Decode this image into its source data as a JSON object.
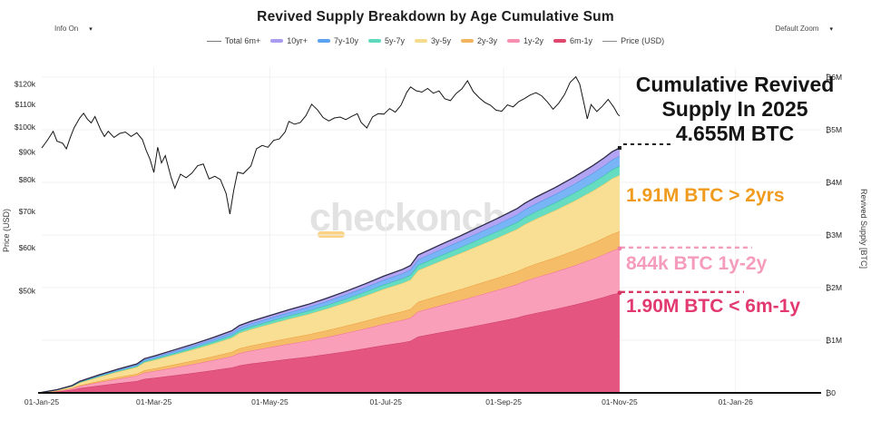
{
  "header": {
    "title": "Revived Supply Breakdown by Age Cumulative Sum",
    "info_dropdown": "Info On",
    "zoom_dropdown": "Default Zoom",
    "arrow": "▾"
  },
  "watermark": "checkonchain",
  "legend": [
    {
      "label": "Total 6m+",
      "kind": "line",
      "color": "#7a7a7a"
    },
    {
      "label": "10yr+",
      "kind": "swatch",
      "color": "#a99bef"
    },
    {
      "label": "7y-10y",
      "kind": "swatch",
      "color": "#5ba3f0"
    },
    {
      "label": "5y-7y",
      "kind": "swatch",
      "color": "#5fd9bb"
    },
    {
      "label": "3y-5y",
      "kind": "swatch",
      "color": "#f6dc8e"
    },
    {
      "label": "2y-3y",
      "kind": "swatch",
      "color": "#f2b45f"
    },
    {
      "label": "1y-2y",
      "kind": "swatch",
      "color": "#f78fb0"
    },
    {
      "label": "6m-1y",
      "kind": "swatch",
      "color": "#e0476f"
    },
    {
      "label": "Price (USD)",
      "kind": "line",
      "color": "#8a8a8a"
    }
  ],
  "annotations": {
    "headline": {
      "line1": "Cumulative Revived",
      "line2": "Supply In 2025",
      "line3": "4.655M BTC"
    },
    "over2y": "1.91M BTC > 2yrs",
    "y1to2": "844k BTC 1y-2y",
    "under1y": "1.90M BTC < 6m-1y"
  },
  "chart_data": {
    "type": "area",
    "title": "Revived Supply Breakdown by Age Cumulative Sum",
    "xlabel": "",
    "left_axis": {
      "label": "Price (USD)",
      "scale": "log",
      "ticks": [
        {
          "label": "$120k",
          "k": 120
        },
        {
          "label": "$110k",
          "k": 110
        },
        {
          "label": "$100k",
          "k": 100
        },
        {
          "label": "$90k",
          "k": 90
        },
        {
          "label": "$80k",
          "k": 80
        },
        {
          "label": "$70k",
          "k": 70
        },
        {
          "label": "$60k",
          "k": 60
        },
        {
          "label": "$50k",
          "k": 50
        }
      ]
    },
    "right_axis": {
      "label": "Revived Supply [BTC]",
      "scale": "linear",
      "max_m": 6,
      "ticks": [
        {
          "label": "₿6M",
          "m": 6
        },
        {
          "label": "₿5M",
          "m": 5
        },
        {
          "label": "₿4M",
          "m": 4
        },
        {
          "label": "₿3M",
          "m": 3
        },
        {
          "label": "₿2M",
          "m": 2
        },
        {
          "label": "₿1M",
          "m": 1
        },
        {
          "label": "₿0",
          "m": 0
        }
      ]
    },
    "x_domain_days": 410,
    "x_ticks": [
      {
        "label": "01-Jan-25",
        "day": 0
      },
      {
        "label": "01-Mar-25",
        "day": 59
      },
      {
        "label": "01-May-25",
        "day": 120
      },
      {
        "label": "01-Jul-25",
        "day": 181
      },
      {
        "label": "01-Sep-25",
        "day": 243
      },
      {
        "label": "01-Nov-25",
        "day": 304
      },
      {
        "label": "01-Jan-26",
        "day": 365
      }
    ],
    "supply": {
      "days": [
        0,
        8,
        16,
        20,
        30,
        40,
        50,
        54,
        60,
        70,
        80,
        90,
        100,
        104,
        110,
        120,
        130,
        140,
        150,
        160,
        170,
        180,
        190,
        194,
        198,
        210,
        220,
        230,
        240,
        250,
        254,
        260,
        270,
        280,
        290,
        296,
        300,
        304
      ],
      "total_m": [
        0.01,
        0.06,
        0.14,
        0.22,
        0.34,
        0.45,
        0.55,
        0.65,
        0.71,
        0.82,
        0.93,
        1.05,
        1.18,
        1.28,
        1.36,
        1.47,
        1.58,
        1.68,
        1.8,
        1.93,
        2.07,
        2.22,
        2.35,
        2.42,
        2.62,
        2.82,
        2.98,
        3.15,
        3.32,
        3.5,
        3.6,
        3.72,
        3.9,
        4.1,
        4.32,
        4.47,
        4.58,
        4.655
      ],
      "series": [
        {
          "name": "6m-1y",
          "share": 0.4081,
          "final_btc_m": 1.9,
          "fill": "#e4557f",
          "stroke": "#c93a66"
        },
        {
          "name": "1y-2y",
          "share": 0.1813,
          "final_btc_m": 0.844,
          "fill": "#f99fba",
          "stroke": "#ef6f9b"
        },
        {
          "name": "2y-3y",
          "share": 0.07,
          "final_btc_m": 0.326,
          "fill": "#f6bd69",
          "stroke": "#eb9e3e"
        },
        {
          "name": "3y-5y",
          "share": 0.2296,
          "final_btc_m": 1.071,
          "fill": "#f9df94",
          "stroke": "#ecc45f"
        },
        {
          "name": "5y-7y",
          "share": 0.0369,
          "final_btc_m": 0.172,
          "fill": "#66dcc0",
          "stroke": "#35bf9d"
        },
        {
          "name": "7y-10y",
          "share": 0.041,
          "final_btc_m": 0.191,
          "fill": "#77b5f6",
          "stroke": "#4b8fe2"
        },
        {
          "name": "10yr+",
          "share": 0.0331,
          "final_btc_m": 0.154,
          "fill": "#b2a4f2",
          "stroke": "#8d7ce3"
        }
      ],
      "total_line_color": "#2e2e48",
      "markers": {
        "total_top_m": 4.655,
        "boundary_1y2y_m": 2.744,
        "boundary_6m1y_m": 1.9
      }
    },
    "price_line_color": "#161616",
    "price_usd_k": [
      [
        0,
        91.5
      ],
      [
        3,
        94.6
      ],
      [
        6,
        98.2
      ],
      [
        8,
        94.2
      ],
      [
        11,
        93.4
      ],
      [
        13,
        91.2
      ],
      [
        15,
        95.6
      ],
      [
        17,
        99.6
      ],
      [
        20,
        103.9
      ],
      [
        22,
        106.0
      ],
      [
        24,
        103.4
      ],
      [
        26,
        101.8
      ],
      [
        28,
        104.5
      ],
      [
        31,
        98.9
      ],
      [
        33,
        96.1
      ],
      [
        35,
        98.2
      ],
      [
        38,
        95.7
      ],
      [
        41,
        97.3
      ],
      [
        44,
        97.9
      ],
      [
        47,
        96.1
      ],
      [
        50,
        97.6
      ],
      [
        53,
        94.8
      ],
      [
        55,
        90.5
      ],
      [
        57,
        87.2
      ],
      [
        59,
        82.5
      ],
      [
        61,
        91.8
      ],
      [
        63,
        85.9
      ],
      [
        65,
        88.6
      ],
      [
        68,
        80.9
      ],
      [
        70,
        77.2
      ],
      [
        73,
        81.9
      ],
      [
        76,
        80.7
      ],
      [
        79,
        82.3
      ],
      [
        82,
        84.9
      ],
      [
        85,
        85.5
      ],
      [
        88,
        80.3
      ],
      [
        91,
        81.2
      ],
      [
        94,
        80.1
      ],
      [
        97,
        75.5
      ],
      [
        99,
        69.2
      ],
      [
        101,
        76.5
      ],
      [
        103,
        82.6
      ],
      [
        106,
        82.1
      ],
      [
        110,
        84.8
      ],
      [
        113,
        91.2
      ],
      [
        116,
        92.5
      ],
      [
        119,
        91.8
      ],
      [
        122,
        94.5
      ],
      [
        125,
        95.1
      ],
      [
        128,
        97.9
      ],
      [
        130,
        102.4
      ],
      [
        133,
        101.2
      ],
      [
        136,
        101.9
      ],
      [
        139,
        104.9
      ],
      [
        142,
        110.1
      ],
      [
        145,
        107.6
      ],
      [
        148,
        104.1
      ],
      [
        151,
        102.6
      ],
      [
        154,
        103.9
      ],
      [
        157,
        104.3
      ],
      [
        160,
        103.2
      ],
      [
        163,
        104.6
      ],
      [
        166,
        105.8
      ],
      [
        168,
        102.0
      ],
      [
        171,
        99.6
      ],
      [
        174,
        104.4
      ],
      [
        177,
        105.8
      ],
      [
        180,
        105.6
      ],
      [
        183,
        108.1
      ],
      [
        186,
        106.5
      ],
      [
        189,
        109.7
      ],
      [
        192,
        115.8
      ],
      [
        194,
        118.5
      ],
      [
        197,
        116.6
      ],
      [
        200,
        115.9
      ],
      [
        203,
        117.7
      ],
      [
        206,
        115.4
      ],
      [
        209,
        116.5
      ],
      [
        212,
        112.7
      ],
      [
        215,
        111.8
      ],
      [
        218,
        115.2
      ],
      [
        221,
        117.5
      ],
      [
        224,
        121.6
      ],
      [
        227,
        116.2
      ],
      [
        230,
        113.3
      ],
      [
        233,
        111.0
      ],
      [
        236,
        109.7
      ],
      [
        239,
        107.4
      ],
      [
        242,
        106.9
      ],
      [
        245,
        109.8
      ],
      [
        248,
        108.9
      ],
      [
        251,
        111.4
      ],
      [
        254,
        112.8
      ],
      [
        257,
        114.5
      ],
      [
        260,
        115.6
      ],
      [
        263,
        114.1
      ],
      [
        266,
        111.2
      ],
      [
        269,
        107.8
      ],
      [
        272,
        110.6
      ],
      [
        275,
        114.7
      ],
      [
        278,
        120.8
      ],
      [
        281,
        123.7
      ],
      [
        283,
        120.0
      ],
      [
        285,
        111.6
      ],
      [
        287,
        103.5
      ],
      [
        289,
        110.0
      ],
      [
        292,
        106.8
      ],
      [
        295,
        109.3
      ],
      [
        298,
        112.4
      ],
      [
        301,
        108.7
      ],
      [
        303,
        105.6
      ],
      [
        304,
        104.8
      ]
    ]
  }
}
